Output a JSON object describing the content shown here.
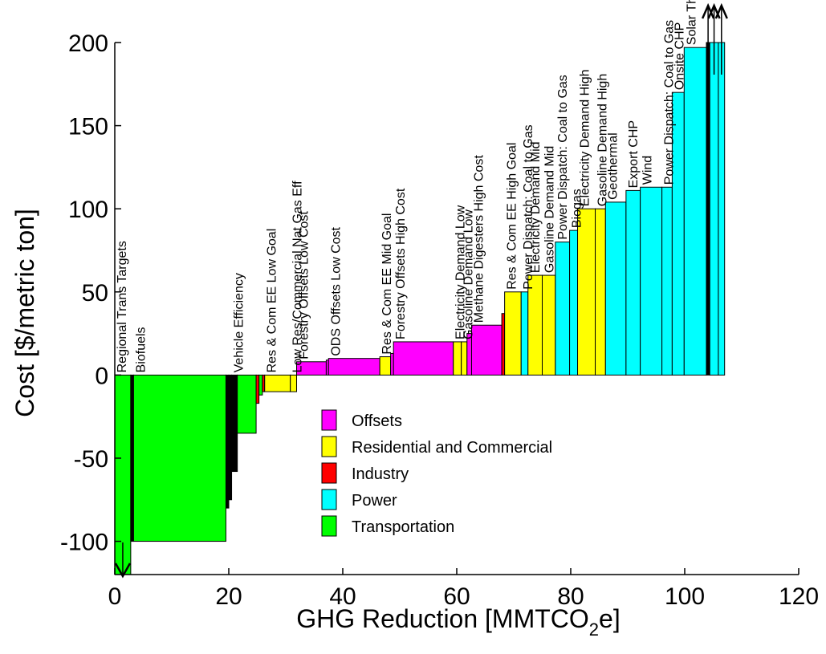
{
  "chart_data": {
    "type": "bar",
    "subtype": "marginal-abatement-cost-curve",
    "xlabel_main": "GHG Reduction [MMTCO",
    "xlabel_sub": "2",
    "xlabel_end": "e]",
    "ylabel": "Cost [$/metric ton]",
    "xlim": [
      0,
      120
    ],
    "ylim": [
      -120,
      200
    ],
    "x_ticks": [
      0,
      20,
      40,
      60,
      80,
      100,
      120
    ],
    "y_ticks": [
      -100,
      -50,
      0,
      50,
      100,
      150,
      200
    ],
    "sector_colors": {
      "Offsets": "#ff00ff",
      "Residential and Commercial": "#ffff00",
      "Industry": "#ff0000",
      "Power": "#00ffff",
      "Transportation": "#00ff00"
    },
    "legend": [
      "Offsets",
      "Residential and Commercial",
      "Industry",
      "Power",
      "Transportation"
    ],
    "bars": [
      {
        "sector": "Transportation",
        "x0": 0,
        "x1": 2.8,
        "cost": -120,
        "label": "Regional Trans Targets",
        "clipped": "down"
      },
      {
        "sector": "Transportation",
        "x0": 2.8,
        "x1": 3.3,
        "cost": -100,
        "label": "",
        "dark": true
      },
      {
        "sector": "Transportation",
        "x0": 3.3,
        "x1": 19.5,
        "cost": -100,
        "label": "Biofuels"
      },
      {
        "sector": "Transportation",
        "x0": 19.5,
        "x1": 20.0,
        "cost": -80,
        "label": "",
        "dark": true
      },
      {
        "sector": "Transportation",
        "x0": 20.0,
        "x1": 20.5,
        "cost": -75,
        "label": "",
        "dark": true
      },
      {
        "sector": "Transportation",
        "x0": 20.5,
        "x1": 21.5,
        "cost": -58,
        "label": "Vehicle Efficiency",
        "dark": true
      },
      {
        "sector": "Transportation",
        "x0": 21.5,
        "x1": 24.8,
        "cost": -35,
        "label": ""
      },
      {
        "sector": "Industry",
        "x0": 24.8,
        "x1": 25.3,
        "cost": -17,
        "label": ""
      },
      {
        "sector": "Transportation",
        "x0": 25.3,
        "x1": 25.9,
        "cost": -12,
        "label": ""
      },
      {
        "sector": "Industry",
        "x0": 25.9,
        "x1": 26.3,
        "cost": -10,
        "label": ""
      },
      {
        "sector": "Residential and Commercial",
        "x0": 26.3,
        "x1": 30.8,
        "cost": -10,
        "label": "Res & Com EE Low Goal"
      },
      {
        "sector": "Residential and Commercial",
        "x0": 30.8,
        "x1": 31.9,
        "cost": -10,
        "label": "Low Res/Commercial Nat Gas Eff"
      },
      {
        "sector": "Offsets",
        "x0": 31.9,
        "x1": 37.1,
        "cost": 8,
        "label": "Forestry Offsets Low Cost"
      },
      {
        "sector": "Offsets",
        "x0": 37.1,
        "x1": 37.5,
        "cost": 9,
        "label": ""
      },
      {
        "sector": "Offsets",
        "x0": 37.5,
        "x1": 46.5,
        "cost": 10,
        "label": "ODS Offsets Low Cost"
      },
      {
        "sector": "Residential and Commercial",
        "x0": 46.5,
        "x1": 48.4,
        "cost": 11,
        "label": "Res & Com EE Mid Goal"
      },
      {
        "sector": "Offsets",
        "x0": 48.4,
        "x1": 48.9,
        "cost": 13,
        "label": ""
      },
      {
        "sector": "Offsets",
        "x0": 48.9,
        "x1": 59.4,
        "cost": 20,
        "label": "Forestry Offsets High Cost"
      },
      {
        "sector": "Residential and Commercial",
        "x0": 59.4,
        "x1": 60.8,
        "cost": 20,
        "label": "Electricity Demand Low"
      },
      {
        "sector": "Residential and Commercial",
        "x0": 60.8,
        "x1": 61.8,
        "cost": 20,
        "label": "Gasoline Demand Low"
      },
      {
        "sector": "Offsets",
        "x0": 61.8,
        "x1": 62.6,
        "cost": 25,
        "label": ""
      },
      {
        "sector": "Offsets",
        "x0": 62.6,
        "x1": 67.9,
        "cost": 30,
        "label": "Methane Digesters High Cost"
      },
      {
        "sector": "Industry",
        "x0": 67.9,
        "x1": 68.4,
        "cost": 37,
        "label": ""
      },
      {
        "sector": "Residential and Commercial",
        "x0": 68.4,
        "x1": 71.3,
        "cost": 50,
        "label": "Res & Com EE High Goal"
      },
      {
        "sector": "Power",
        "x0": 71.3,
        "x1": 72.5,
        "cost": 50,
        "label": "Power Dispatch: Coal to Gas"
      },
      {
        "sector": "Residential and Commercial",
        "x0": 72.5,
        "x1": 75.0,
        "cost": 60,
        "label": "Electricity Demand Mid"
      },
      {
        "sector": "Residential and Commercial",
        "x0": 75.0,
        "x1": 77.3,
        "cost": 60,
        "label": "Gasoline Demand Mid"
      },
      {
        "sector": "Power",
        "x0": 77.3,
        "x1": 79.8,
        "cost": 80,
        "label": "Power Dispatch: Coal to Gas"
      },
      {
        "sector": "Power",
        "x0": 79.8,
        "x1": 81.2,
        "cost": 87,
        "label": "Biogas"
      },
      {
        "sector": "Residential and Commercial",
        "x0": 81.2,
        "x1": 84.3,
        "cost": 100,
        "label": "Electricity Demand High"
      },
      {
        "sector": "Residential and Commercial",
        "x0": 84.3,
        "x1": 86.1,
        "cost": 100,
        "label": "Gasoline Demand High"
      },
      {
        "sector": "Power",
        "x0": 86.1,
        "x1": 89.7,
        "cost": 104,
        "label": "Geothermal"
      },
      {
        "sector": "Power",
        "x0": 89.7,
        "x1": 92.2,
        "cost": 111,
        "label": "Export CHP"
      },
      {
        "sector": "Power",
        "x0": 92.2,
        "x1": 96.0,
        "cost": 113,
        "label": "Wind"
      },
      {
        "sector": "Power",
        "x0": 96.0,
        "x1": 97.8,
        "cost": 113,
        "label": "Power Dispatch: Coal to Gas"
      },
      {
        "sector": "Power",
        "x0": 97.8,
        "x1": 99.9,
        "cost": 170,
        "label": "Onsite CHP"
      },
      {
        "sector": "Power",
        "x0": 99.9,
        "x1": 103.8,
        "cost": 197,
        "label": "Solar Thermal"
      },
      {
        "sector": "Power",
        "x0": 103.8,
        "x1": 104.4,
        "cost": 200,
        "label": "",
        "dark": true,
        "clipped": "up"
      },
      {
        "sector": "Power",
        "x0": 104.4,
        "x1": 105.9,
        "cost": 200,
        "label": "",
        "clipped": "up"
      },
      {
        "sector": "Power",
        "x0": 105.9,
        "x1": 107.0,
        "cost": 200,
        "label": "",
        "clipped": "up"
      }
    ]
  }
}
